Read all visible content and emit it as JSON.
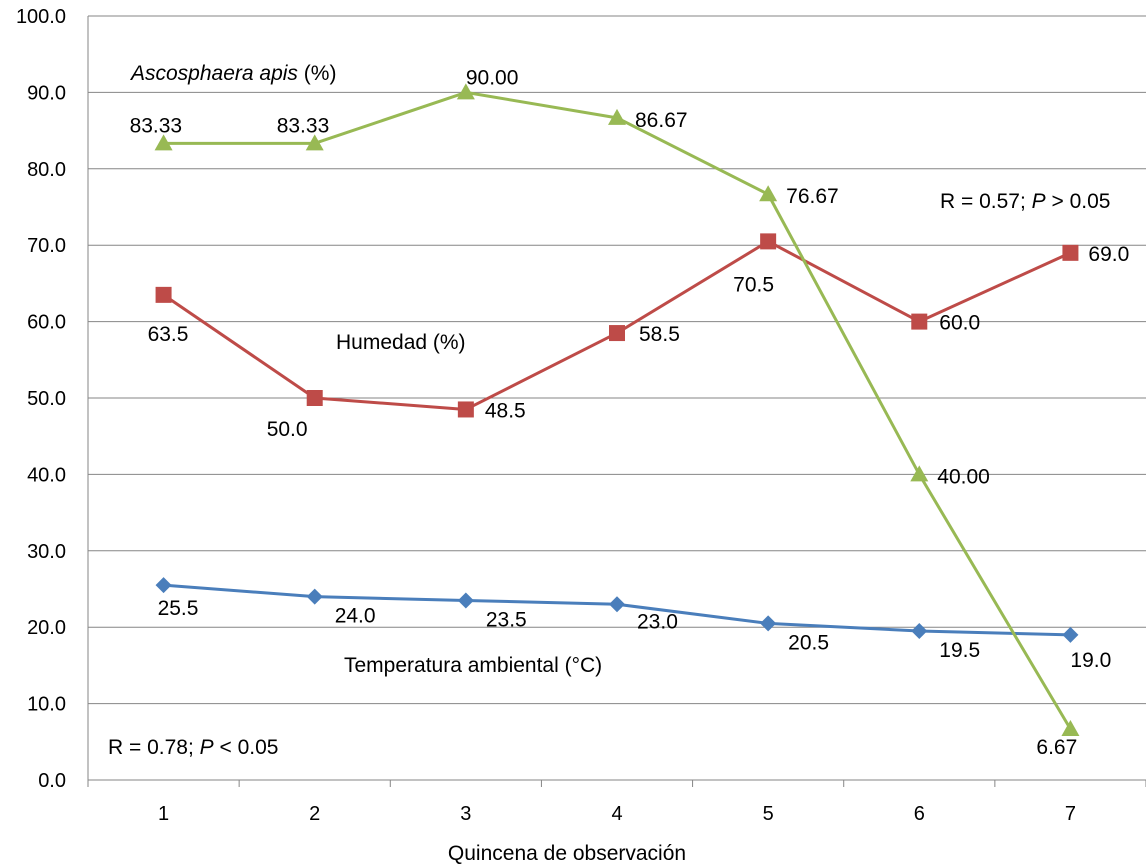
{
  "chart_data": {
    "type": "line",
    "categories": [
      "1",
      "2",
      "3",
      "4",
      "5",
      "6",
      "7"
    ],
    "xlabel": "Quincena de observación",
    "ylabel": "",
    "ylim": [
      0,
      100
    ],
    "ytick_step": 10,
    "ytick_labels": [
      "0.0",
      "10.0",
      "20.0",
      "30.0",
      "40.0",
      "50.0",
      "60.0",
      "70.0",
      "80.0",
      "90.0",
      "100.0"
    ],
    "grid": "horizontal",
    "series": [
      {
        "key": "temperatura",
        "name": "Temperatura ambiental (°C)",
        "color": "#4a7ebb",
        "marker": "diamond",
        "values": [
          25.5,
          24.0,
          23.5,
          23.0,
          20.5,
          19.5,
          19.0
        ],
        "labels": [
          "25.5",
          "24.0",
          "23.5",
          "23.0",
          "20.5",
          "19.5",
          "19.0"
        ]
      },
      {
        "key": "humedad",
        "name": "Humedad (%)",
        "color": "#be4b48",
        "marker": "square",
        "values": [
          63.5,
          50.0,
          48.5,
          58.5,
          70.5,
          60.0,
          69.0
        ],
        "labels": [
          "63.5",
          "50.0",
          "48.5",
          "58.5",
          "70.5",
          "60.0",
          "69.0"
        ]
      },
      {
        "key": "ascosphaera",
        "name_italic": "Ascosphaera apis",
        "name_rest": " (%)",
        "color": "#98b954",
        "marker": "triangle",
        "values": [
          83.33,
          83.33,
          90.0,
          86.67,
          76.67,
          40.0,
          6.67
        ],
        "labels": [
          "83.33",
          "83.33",
          "90.00",
          "86.67",
          "76.67",
          "40.00",
          "6.67"
        ]
      }
    ],
    "annotations": {
      "corr_humedad": {
        "pre": "R = 0.57; ",
        "p": "P",
        "post": " > 0.05"
      },
      "corr_temperatura": {
        "pre": "R = 0.78; ",
        "p": "P",
        "post": " < 0.05"
      }
    }
  }
}
